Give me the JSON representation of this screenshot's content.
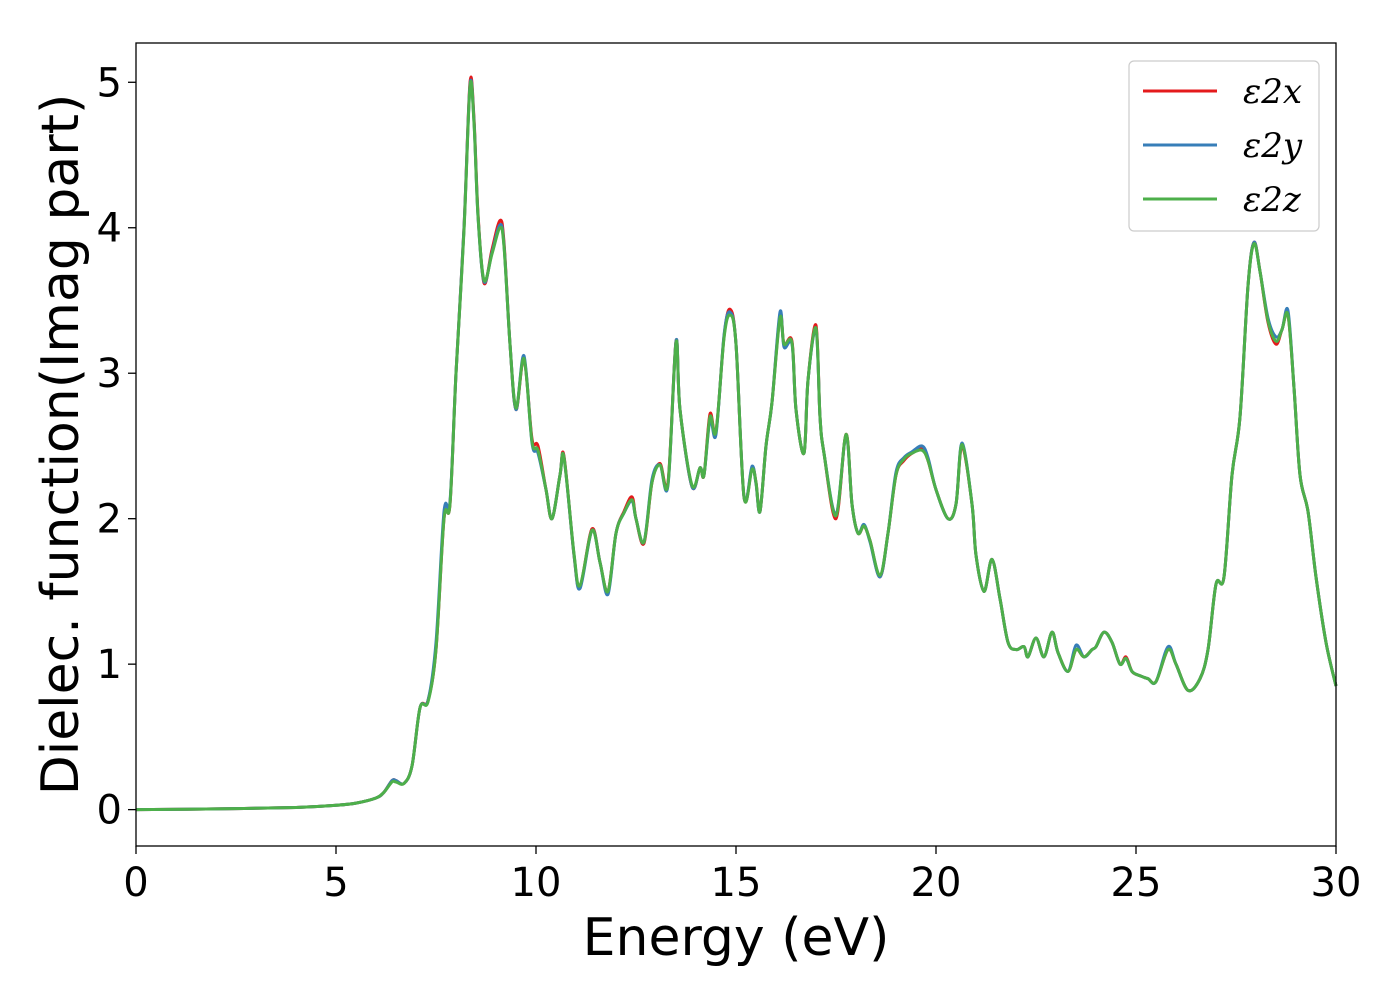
{
  "chart_data": {
    "type": "line",
    "title": "",
    "xlabel": "Energy (eV)",
    "ylabel": "Dielec. function(Imag part)",
    "xlim": [
      0,
      30
    ],
    "ylim": [
      -0.25,
      5.27
    ],
    "xticks": [
      0,
      5,
      10,
      15,
      20,
      25,
      30
    ],
    "yticks": [
      0,
      1,
      2,
      3,
      4,
      5
    ],
    "grid": false,
    "legend_position": "top-right",
    "series": [
      {
        "name": "ε2x",
        "color": "#e41a1c",
        "x": [
          0,
          2,
          4,
          5,
          5.5,
          6,
          6.2,
          6.4,
          6.5,
          6.7,
          6.9,
          7.1,
          7.3,
          7.5,
          7.7,
          7.85,
          8.0,
          8.2,
          8.35,
          8.45,
          8.55,
          8.7,
          8.9,
          9.1,
          9.2,
          9.35,
          9.5,
          9.7,
          9.9,
          10.05,
          10.25,
          10.4,
          10.6,
          10.7,
          10.95,
          11.1,
          11.4,
          11.6,
          11.8,
          12.0,
          12.2,
          12.4,
          12.5,
          12.7,
          12.9,
          13.1,
          13.3,
          13.5,
          13.6,
          13.9,
          14.1,
          14.2,
          14.35,
          14.5,
          14.7,
          14.85,
          15.0,
          15.2,
          15.4,
          15.5,
          15.6,
          15.75,
          15.9,
          16.1,
          16.2,
          16.4,
          16.5,
          16.7,
          16.8,
          17.0,
          17.1,
          17.2,
          17.5,
          17.75,
          17.9,
          18.05,
          18.2,
          18.35,
          18.6,
          18.8,
          19.0,
          19.2,
          19.4,
          19.65,
          19.8,
          20.0,
          20.3,
          20.5,
          20.65,
          20.9,
          21.0,
          21.2,
          21.4,
          21.6,
          21.8,
          22.0,
          22.2,
          22.3,
          22.5,
          22.7,
          22.9,
          23.05,
          23.3,
          23.5,
          23.7,
          23.9,
          24.0,
          24.2,
          24.4,
          24.6,
          24.75,
          24.9,
          25.1,
          25.3,
          25.5,
          25.8,
          26.0,
          26.3,
          26.6,
          26.8,
          27.0,
          27.2,
          27.4,
          27.6,
          27.8,
          27.95,
          28.1,
          28.3,
          28.5,
          28.65,
          28.8,
          28.95,
          29.1,
          29.3,
          29.5,
          29.75,
          30.0
        ],
        "y": [
          0,
          0.005,
          0.015,
          0.03,
          0.045,
          0.08,
          0.12,
          0.2,
          0.2,
          0.18,
          0.3,
          0.7,
          0.75,
          1.1,
          2.0,
          2.1,
          3.0,
          4.0,
          5.0,
          4.75,
          4.1,
          3.62,
          3.85,
          4.05,
          3.9,
          3.2,
          2.75,
          3.1,
          2.55,
          2.5,
          2.2,
          2.0,
          2.3,
          2.43,
          1.75,
          1.53,
          1.93,
          1.7,
          1.5,
          1.9,
          2.05,
          2.15,
          2.0,
          1.83,
          2.25,
          2.38,
          2.25,
          3.22,
          2.75,
          2.22,
          2.35,
          2.3,
          2.72,
          2.6,
          3.25,
          3.44,
          3.2,
          2.15,
          2.35,
          2.25,
          2.05,
          2.5,
          2.8,
          3.4,
          3.2,
          3.22,
          2.75,
          2.45,
          2.95,
          3.33,
          2.7,
          2.45,
          2.0,
          2.58,
          2.1,
          1.9,
          1.95,
          1.85,
          1.6,
          1.9,
          2.3,
          2.4,
          2.45,
          2.48,
          2.4,
          2.2,
          2.0,
          2.1,
          2.5,
          2.1,
          1.75,
          1.5,
          1.72,
          1.45,
          1.15,
          1.1,
          1.12,
          1.05,
          1.18,
          1.05,
          1.22,
          1.08,
          0.95,
          1.1,
          1.05,
          1.1,
          1.12,
          1.22,
          1.15,
          1.0,
          1.05,
          0.95,
          0.92,
          0.9,
          0.88,
          1.1,
          1.0,
          0.82,
          0.9,
          1.1,
          1.55,
          1.6,
          2.3,
          2.7,
          3.6,
          3.9,
          3.7,
          3.35,
          3.2,
          3.3,
          3.4,
          2.9,
          2.3,
          2.05,
          1.6,
          1.15,
          0.85
        ]
      },
      {
        "name": "ε2y",
        "color": "#377eb8",
        "x": [
          0,
          2,
          4,
          5,
          5.5,
          6,
          6.2,
          6.4,
          6.5,
          6.7,
          6.9,
          7.1,
          7.3,
          7.5,
          7.7,
          7.85,
          8.0,
          8.2,
          8.35,
          8.45,
          8.55,
          8.7,
          8.9,
          9.1,
          9.2,
          9.35,
          9.5,
          9.7,
          9.9,
          10.05,
          10.25,
          10.4,
          10.6,
          10.7,
          10.95,
          11.1,
          11.4,
          11.6,
          11.8,
          12.0,
          12.2,
          12.4,
          12.5,
          12.7,
          12.9,
          13.1,
          13.3,
          13.5,
          13.6,
          13.9,
          14.1,
          14.2,
          14.35,
          14.5,
          14.7,
          14.85,
          15.0,
          15.2,
          15.4,
          15.5,
          15.6,
          15.75,
          15.9,
          16.1,
          16.2,
          16.4,
          16.5,
          16.7,
          16.8,
          17.0,
          17.1,
          17.2,
          17.5,
          17.75,
          17.9,
          18.05,
          18.2,
          18.35,
          18.6,
          18.8,
          19.0,
          19.2,
          19.4,
          19.65,
          19.8,
          20.0,
          20.3,
          20.5,
          20.65,
          20.9,
          21.0,
          21.2,
          21.4,
          21.6,
          21.8,
          22.0,
          22.2,
          22.3,
          22.5,
          22.7,
          22.9,
          23.05,
          23.3,
          23.5,
          23.7,
          23.9,
          24.0,
          24.2,
          24.4,
          24.6,
          24.75,
          24.9,
          25.1,
          25.3,
          25.5,
          25.8,
          26.0,
          26.3,
          26.6,
          26.8,
          27.0,
          27.2,
          27.4,
          27.6,
          27.8,
          27.95,
          28.1,
          28.3,
          28.5,
          28.65,
          28.8,
          28.95,
          29.1,
          29.3,
          29.5,
          29.75,
          30.0
        ],
        "y": [
          0,
          0.005,
          0.015,
          0.03,
          0.045,
          0.08,
          0.12,
          0.2,
          0.2,
          0.18,
          0.3,
          0.7,
          0.75,
          1.15,
          2.05,
          2.12,
          3.0,
          4.0,
          4.98,
          4.73,
          4.08,
          3.63,
          3.83,
          4.02,
          3.88,
          3.2,
          2.75,
          3.12,
          2.52,
          2.45,
          2.2,
          2.0,
          2.3,
          2.42,
          1.75,
          1.52,
          1.92,
          1.7,
          1.48,
          1.9,
          2.04,
          2.12,
          2.0,
          1.84,
          2.27,
          2.37,
          2.23,
          3.22,
          2.75,
          2.22,
          2.35,
          2.3,
          2.68,
          2.58,
          3.26,
          3.42,
          3.2,
          2.15,
          2.36,
          2.24,
          2.05,
          2.5,
          2.8,
          3.42,
          3.18,
          3.2,
          2.75,
          2.45,
          2.95,
          3.3,
          2.7,
          2.45,
          2.03,
          2.57,
          2.1,
          1.9,
          1.96,
          1.84,
          1.6,
          1.9,
          2.32,
          2.42,
          2.46,
          2.5,
          2.42,
          2.2,
          2.0,
          2.1,
          2.52,
          2.1,
          1.75,
          1.5,
          1.72,
          1.45,
          1.15,
          1.1,
          1.12,
          1.05,
          1.18,
          1.05,
          1.22,
          1.08,
          0.95,
          1.13,
          1.05,
          1.1,
          1.12,
          1.22,
          1.15,
          1.0,
          1.04,
          0.95,
          0.92,
          0.9,
          0.88,
          1.12,
          1.0,
          0.82,
          0.9,
          1.1,
          1.55,
          1.6,
          2.3,
          2.7,
          3.6,
          3.9,
          3.7,
          3.38,
          3.25,
          3.3,
          3.43,
          2.9,
          2.3,
          2.05,
          1.6,
          1.15,
          0.85
        ]
      },
      {
        "name": "ε2z",
        "color": "#4daf4a",
        "x": [
          0,
          2,
          4,
          5,
          5.5,
          6,
          6.2,
          6.4,
          6.5,
          6.7,
          6.9,
          7.1,
          7.3,
          7.5,
          7.7,
          7.85,
          8.0,
          8.2,
          8.35,
          8.45,
          8.55,
          8.7,
          8.9,
          9.1,
          9.2,
          9.35,
          9.5,
          9.7,
          9.9,
          10.05,
          10.25,
          10.4,
          10.6,
          10.7,
          10.95,
          11.1,
          11.4,
          11.6,
          11.8,
          12.0,
          12.2,
          12.4,
          12.5,
          12.7,
          12.9,
          13.1,
          13.3,
          13.5,
          13.6,
          13.9,
          14.1,
          14.2,
          14.35,
          14.5,
          14.7,
          14.85,
          15.0,
          15.2,
          15.4,
          15.5,
          15.6,
          15.75,
          15.9,
          16.1,
          16.2,
          16.4,
          16.5,
          16.7,
          16.8,
          17.0,
          17.1,
          17.2,
          17.5,
          17.75,
          17.9,
          18.05,
          18.2,
          18.35,
          18.6,
          18.8,
          19.0,
          19.2,
          19.4,
          19.65,
          19.8,
          20.0,
          20.3,
          20.5,
          20.65,
          20.9,
          21.0,
          21.2,
          21.4,
          21.6,
          21.8,
          22.0,
          22.2,
          22.3,
          22.5,
          22.7,
          22.9,
          23.05,
          23.3,
          23.5,
          23.7,
          23.9,
          24.0,
          24.2,
          24.4,
          24.6,
          24.75,
          24.9,
          25.1,
          25.3,
          25.5,
          25.8,
          26.0,
          26.3,
          26.6,
          26.8,
          27.0,
          27.2,
          27.4,
          27.6,
          27.8,
          27.95,
          28.1,
          28.3,
          28.5,
          28.65,
          28.8,
          28.95,
          29.1,
          29.3,
          29.5,
          29.75,
          30.0
        ],
        "y": [
          0,
          0.005,
          0.015,
          0.03,
          0.045,
          0.08,
          0.12,
          0.19,
          0.19,
          0.18,
          0.3,
          0.7,
          0.74,
          1.1,
          2.0,
          2.1,
          3.0,
          3.98,
          4.97,
          4.72,
          4.08,
          3.64,
          3.82,
          4.0,
          3.87,
          3.2,
          2.76,
          3.1,
          2.53,
          2.47,
          2.2,
          2.0,
          2.3,
          2.42,
          1.76,
          1.54,
          1.92,
          1.7,
          1.5,
          1.9,
          2.04,
          2.13,
          2.0,
          1.84,
          2.25,
          2.37,
          2.24,
          3.21,
          2.75,
          2.23,
          2.35,
          2.3,
          2.7,
          2.6,
          3.24,
          3.4,
          3.2,
          2.15,
          2.34,
          2.25,
          2.05,
          2.5,
          2.8,
          3.38,
          3.2,
          3.21,
          2.75,
          2.45,
          2.95,
          3.31,
          2.7,
          2.45,
          2.02,
          2.58,
          2.1,
          1.9,
          1.95,
          1.85,
          1.61,
          1.9,
          2.3,
          2.41,
          2.45,
          2.47,
          2.4,
          2.2,
          2.0,
          2.1,
          2.51,
          2.1,
          1.75,
          1.5,
          1.72,
          1.45,
          1.15,
          1.1,
          1.12,
          1.05,
          1.18,
          1.05,
          1.22,
          1.08,
          0.95,
          1.1,
          1.05,
          1.1,
          1.12,
          1.22,
          1.15,
          1.0,
          1.04,
          0.95,
          0.92,
          0.9,
          0.88,
          1.1,
          1.0,
          0.82,
          0.9,
          1.1,
          1.55,
          1.6,
          2.3,
          2.7,
          3.6,
          3.89,
          3.7,
          3.36,
          3.22,
          3.3,
          3.4,
          2.9,
          2.3,
          2.05,
          1.6,
          1.15,
          0.85
        ]
      }
    ]
  }
}
